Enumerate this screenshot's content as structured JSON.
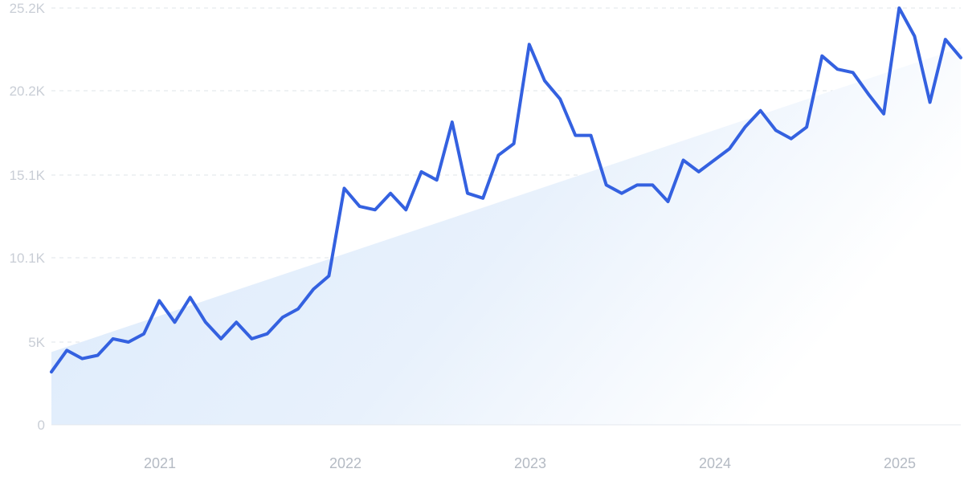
{
  "chart_data": {
    "type": "line",
    "title": "",
    "xlabel": "",
    "ylabel": "",
    "x_tick_labels": [
      "2021",
      "2022",
      "2023",
      "2024",
      "2025"
    ],
    "y_tick_labels": [
      "0",
      "5K",
      "10.1K",
      "15.1K",
      "20.2K",
      "25.2K"
    ],
    "y_tick_values": [
      0,
      5000,
      10100,
      15100,
      20200,
      25200
    ],
    "ylim": [
      0,
      25200
    ],
    "grid": "horizontal dashed",
    "line_color": "#3461e0",
    "trend_fill_color": "#dbeafb",
    "series": [
      {
        "values": [
          3200,
          4500,
          4000,
          4200,
          5200,
          5000,
          5500,
          7500,
          6200,
          7700,
          6200,
          5200,
          6200,
          5200,
          5500,
          6500,
          7000,
          8200,
          9000,
          14300,
          13200,
          13000,
          14000,
          13000,
          15300,
          14800,
          18300,
          14000,
          13700,
          16300,
          17000,
          23000,
          20800,
          19700,
          17500,
          17500,
          14500,
          14000,
          14500,
          14500,
          13500,
          16000,
          15300,
          16000,
          16700,
          18000,
          19000,
          17800,
          17300,
          18000,
          22300,
          21500,
          21300,
          20000,
          18800,
          25200,
          23500,
          19500,
          23300,
          22200
        ]
      }
    ],
    "trend": {
      "start": 4400,
      "end": 22800
    }
  }
}
